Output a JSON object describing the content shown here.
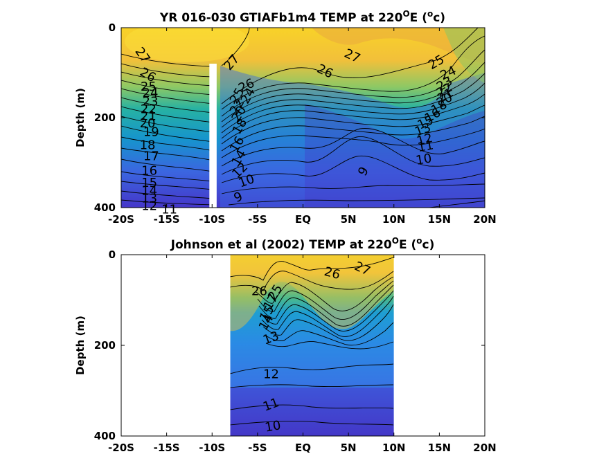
{
  "chart_data": [
    {
      "type": "heatmap",
      "title_prefix": "YR 016-030 GTIAFb1m4 TEMP at 220",
      "title_sup1": "O",
      "title_mid": "E (",
      "title_sup2": "o",
      "title_suffix": "c)",
      "ylabel": "Depth (m)",
      "xlim": [
        -20,
        20
      ],
      "ylim": [
        0,
        400
      ],
      "x_ticks": [
        -20,
        -15,
        -10,
        -5,
        0,
        5,
        10,
        15,
        20
      ],
      "x_tick_labels": [
        "-20S",
        "-15S",
        "-10S",
        "-5S",
        "EQ",
        "5N",
        "10N",
        "15N",
        "20N"
      ],
      "y_ticks": [
        0,
        200,
        400
      ],
      "y_tick_labels": [
        "0",
        "200",
        "400"
      ],
      "data_gap": {
        "lat_from": -10.3,
        "lat_to": -9.5,
        "depth_from": 80,
        "depth_to": 400
      },
      "contour_labels": [
        {
          "text": "27",
          "lat": -17.7,
          "depth": 62,
          "angle": 55
        },
        {
          "text": "26",
          "lat": -17.1,
          "depth": 106,
          "angle": 30
        },
        {
          "text": "25",
          "lat": -17.0,
          "depth": 132,
          "angle": 0
        },
        {
          "text": "24",
          "lat": -16.8,
          "depth": 146,
          "angle": 0
        },
        {
          "text": "23",
          "lat": -16.8,
          "depth": 165,
          "angle": 0
        },
        {
          "text": "22",
          "lat": -17.0,
          "depth": 182,
          "angle": 0
        },
        {
          "text": "21",
          "lat": -17.0,
          "depth": 198,
          "angle": 0
        },
        {
          "text": "20",
          "lat": -17.1,
          "depth": 214,
          "angle": 0
        },
        {
          "text": "19",
          "lat": -16.7,
          "depth": 233,
          "angle": 0
        },
        {
          "text": "18",
          "lat": -17.1,
          "depth": 262,
          "angle": 0
        },
        {
          "text": "17",
          "lat": -16.7,
          "depth": 287,
          "angle": 0
        },
        {
          "text": "16",
          "lat": -16.9,
          "depth": 319,
          "angle": 0
        },
        {
          "text": "15",
          "lat": -16.9,
          "depth": 346,
          "angle": 0
        },
        {
          "text": "14",
          "lat": -16.9,
          "depth": 364,
          "angle": 0
        },
        {
          "text": "13",
          "lat": -16.9,
          "depth": 381,
          "angle": 0
        },
        {
          "text": "12",
          "lat": -16.9,
          "depth": 398,
          "angle": 0
        },
        {
          "text": "11",
          "lat": -14.7,
          "depth": 405,
          "angle": 0
        },
        {
          "text": "27",
          "lat": -7.8,
          "depth": 78,
          "angle": -50
        },
        {
          "text": "26",
          "lat": -6.2,
          "depth": 130,
          "angle": -25
        },
        {
          "text": "25",
          "lat": -7.2,
          "depth": 152,
          "angle": -60
        },
        {
          "text": "24",
          "lat": -6.0,
          "depth": 152,
          "angle": -60
        },
        {
          "text": "22",
          "lat": -7.2,
          "depth": 176,
          "angle": -60
        },
        {
          "text": "20",
          "lat": -7.0,
          "depth": 192,
          "angle": -60
        },
        {
          "text": "18",
          "lat": -6.9,
          "depth": 220,
          "angle": -60
        },
        {
          "text": "16",
          "lat": -7.2,
          "depth": 260,
          "angle": -60
        },
        {
          "text": "14",
          "lat": -7.0,
          "depth": 290,
          "angle": -60
        },
        {
          "text": "12",
          "lat": -6.9,
          "depth": 318,
          "angle": -45
        },
        {
          "text": "10",
          "lat": -6.2,
          "depth": 342,
          "angle": -20
        },
        {
          "text": "9",
          "lat": -7.1,
          "depth": 378,
          "angle": -25
        },
        {
          "text": "26",
          "lat": 2.4,
          "depth": 98,
          "angle": 25
        },
        {
          "text": "27",
          "lat": 5.4,
          "depth": 64,
          "angle": 25
        },
        {
          "text": "25",
          "lat": 14.7,
          "depth": 78,
          "angle": -30
        },
        {
          "text": "24",
          "lat": 16.0,
          "depth": 102,
          "angle": -25
        },
        {
          "text": "23",
          "lat": 15.6,
          "depth": 126,
          "angle": -30
        },
        {
          "text": "22",
          "lat": 15.6,
          "depth": 140,
          "angle": -30
        },
        {
          "text": "21",
          "lat": 15.7,
          "depth": 152,
          "angle": -30
        },
        {
          "text": "20",
          "lat": 15.6,
          "depth": 162,
          "angle": -30
        },
        {
          "text": "18",
          "lat": 15.0,
          "depth": 178,
          "angle": -30
        },
        {
          "text": "16",
          "lat": 14.3,
          "depth": 196,
          "angle": -30
        },
        {
          "text": "15",
          "lat": 13.5,
          "depth": 212,
          "angle": -25
        },
        {
          "text": "13",
          "lat": 13.2,
          "depth": 228,
          "angle": -20
        },
        {
          "text": "12",
          "lat": 13.4,
          "depth": 250,
          "angle": -15
        },
        {
          "text": "11",
          "lat": 13.5,
          "depth": 265,
          "angle": -10
        },
        {
          "text": "10",
          "lat": 13.3,
          "depth": 294,
          "angle": -10
        },
        {
          "text": "9",
          "lat": 6.7,
          "depth": 320,
          "angle": -60
        }
      ]
    },
    {
      "type": "heatmap",
      "title_prefix": "Johnson et al (2002) TEMP at 220",
      "title_sup1": "O",
      "title_mid": "E (",
      "title_sup2": "o",
      "title_suffix": "c)",
      "ylabel": "Depth (m)",
      "xlim": [
        -20,
        20
      ],
      "ylim": [
        0,
        400
      ],
      "x_ticks": [
        -20,
        -15,
        -10,
        -5,
        0,
        5,
        10,
        15,
        20
      ],
      "x_tick_labels": [
        "-20S",
        "-15S",
        "-10S",
        "-5S",
        "EQ",
        "5N",
        "10N",
        "15N",
        "20N"
      ],
      "y_ticks": [
        0,
        200,
        400
      ],
      "y_tick_labels": [
        "0",
        "200",
        "400"
      ],
      "data_extent": {
        "lat_from": -8,
        "lat_to": 10
      },
      "contour_labels": [
        {
          "text": "26",
          "lat": -4.8,
          "depth": 82,
          "angle": 0
        },
        {
          "text": "25",
          "lat": -3.0,
          "depth": 84,
          "angle": -60
        },
        {
          "text": "27",
          "lat": 6.5,
          "depth": 32,
          "angle": 25
        },
        {
          "text": "26",
          "lat": 3.2,
          "depth": 42,
          "angle": 15
        },
        {
          "text": "17",
          "lat": -3.5,
          "depth": 105,
          "angle": -60
        },
        {
          "text": "15",
          "lat": -3.9,
          "depth": 130,
          "angle": -60
        },
        {
          "text": "14",
          "lat": -4.0,
          "depth": 150,
          "angle": -60
        },
        {
          "text": "13",
          "lat": -3.5,
          "depth": 185,
          "angle": -20
        },
        {
          "text": "12",
          "lat": -3.5,
          "depth": 265,
          "angle": 0
        },
        {
          "text": "11",
          "lat": -3.5,
          "depth": 332,
          "angle": -20
        },
        {
          "text": "10",
          "lat": -3.3,
          "depth": 380,
          "angle": -10
        }
      ]
    }
  ],
  "colors": {
    "warm": "#f5d528",
    "mid": "#3cb89a",
    "cool": "#3a5ed8",
    "cold": "#4030c8"
  }
}
